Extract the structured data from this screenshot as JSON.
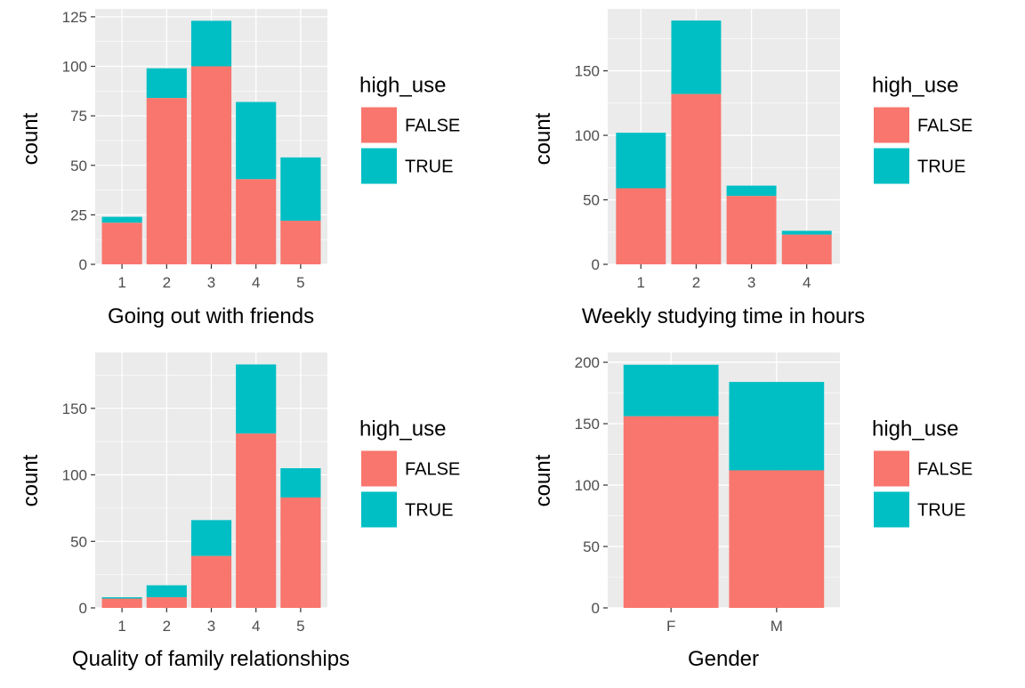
{
  "colors": {
    "false": "#F8766D",
    "true": "#00BFC4",
    "panel": "#EBEBEB",
    "grid": "#FFFFFF",
    "text": "#000000",
    "tick": "#4D4D4D"
  },
  "chart_data": [
    {
      "type": "bar",
      "stacked": true,
      "categories": [
        "1",
        "2",
        "3",
        "4",
        "5"
      ],
      "series": [
        {
          "name": "FALSE",
          "values": [
            21,
            84,
            100,
            43,
            22
          ]
        },
        {
          "name": "TRUE",
          "values": [
            3,
            15,
            23,
            39,
            32
          ]
        }
      ],
      "xlabel": "Going out with friends",
      "ylabel": "count",
      "yticks": [
        0,
        25,
        50,
        75,
        100,
        125
      ],
      "ylim": [
        0,
        129
      ],
      "legend_title": "high_use",
      "legend_position": "right",
      "grid": true
    },
    {
      "type": "bar",
      "stacked": true,
      "categories": [
        "1",
        "2",
        "3",
        "4"
      ],
      "series": [
        {
          "name": "FALSE",
          "values": [
            59,
            132,
            53,
            23
          ]
        },
        {
          "name": "TRUE",
          "values": [
            43,
            57,
            8,
            3
          ]
        }
      ],
      "xlabel": "Weekly studying time in hours",
      "ylabel": "count",
      "yticks": [
        0,
        50,
        100,
        150
      ],
      "ylim": [
        0,
        198
      ],
      "legend_title": "high_use",
      "legend_position": "right",
      "grid": true
    },
    {
      "type": "bar",
      "stacked": true,
      "categories": [
        "1",
        "2",
        "3",
        "4",
        "5"
      ],
      "series": [
        {
          "name": "FALSE",
          "values": [
            7,
            8,
            39,
            131,
            83
          ]
        },
        {
          "name": "TRUE",
          "values": [
            1,
            9,
            27,
            52,
            22
          ]
        }
      ],
      "xlabel": "Quality of family relationships",
      "ylabel": "count",
      "yticks": [
        0,
        50,
        100,
        150
      ],
      "ylim": [
        0,
        192
      ],
      "legend_title": "high_use",
      "legend_position": "right",
      "grid": true
    },
    {
      "type": "bar",
      "stacked": true,
      "categories": [
        "F",
        "M"
      ],
      "series": [
        {
          "name": "FALSE",
          "values": [
            156,
            112
          ]
        },
        {
          "name": "TRUE",
          "values": [
            42,
            72
          ]
        }
      ],
      "xlabel": "Gender",
      "ylabel": "count",
      "yticks": [
        0,
        50,
        100,
        150,
        200
      ],
      "ylim": [
        0,
        208
      ],
      "legend_title": "high_use",
      "legend_position": "right",
      "grid": true
    }
  ]
}
